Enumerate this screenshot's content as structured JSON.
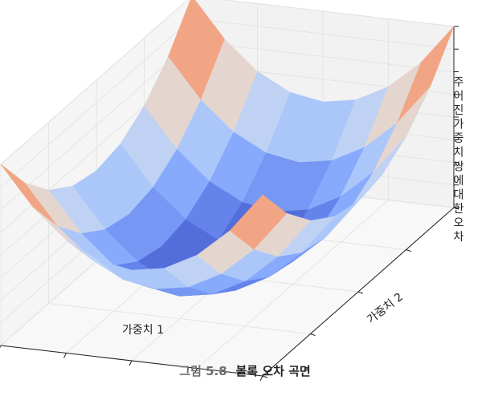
{
  "chart_data": {
    "type": "surface",
    "xlabel": "가중치 1",
    "ylabel": "가중치 2",
    "zlabel": "주어진 가중치 쌍에 대한 오차",
    "x": [
      -1.0,
      -0.75,
      -0.5,
      -0.25,
      0.0,
      0.25,
      0.5,
      0.75,
      1.0
    ],
    "y": [
      -1.0,
      -0.75,
      -0.5,
      -0.25,
      0.0,
      0.25,
      0.5,
      0.75,
      1.0
    ],
    "function": "z = x^2 + y^2",
    "colormap": "coolwarm",
    "grid": true
  },
  "caption": {
    "number": "그림 5.8",
    "title": "볼록 오차 곡면"
  }
}
